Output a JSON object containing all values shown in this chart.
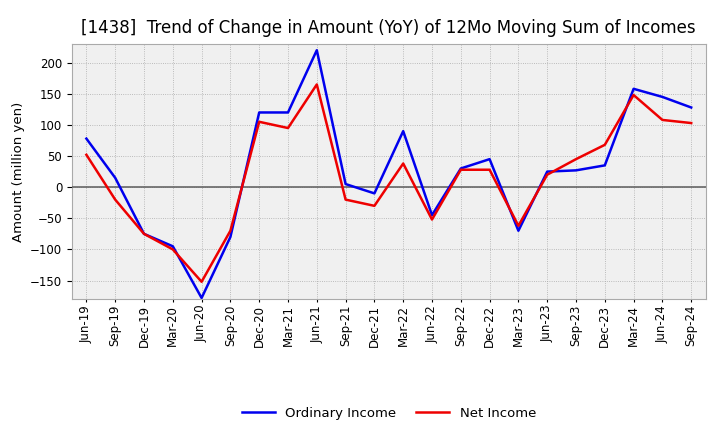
{
  "title": "[1438]  Trend of Change in Amount (YoY) of 12Mo Moving Sum of Incomes",
  "ylabel": "Amount (million yen)",
  "background_color": "#ffffff",
  "plot_bg_color": "#f0f0f0",
  "grid_color": "#aaaaaa",
  "zero_line_color": "#666666",
  "title_fontsize": 12,
  "label_fontsize": 9.5,
  "tick_fontsize": 8.5,
  "ordinary_income_color": "#0000ee",
  "net_income_color": "#ee0000",
  "labels": [
    "Jun-19",
    "Sep-19",
    "Dec-19",
    "Mar-20",
    "Jun-20",
    "Sep-20",
    "Dec-20",
    "Mar-21",
    "Jun-21",
    "Sep-21",
    "Dec-21",
    "Mar-22",
    "Jun-22",
    "Sep-22",
    "Dec-22",
    "Mar-23",
    "Jun-23",
    "Sep-23",
    "Dec-23",
    "Mar-24",
    "Jun-24",
    "Sep-24"
  ],
  "ordinary_income": [
    78,
    15,
    -75,
    -95,
    -178,
    -80,
    120,
    120,
    220,
    5,
    -10,
    90,
    -45,
    30,
    45,
    -70,
    25,
    27,
    35,
    158,
    145,
    128
  ],
  "net_income": [
    52,
    -20,
    -75,
    -100,
    -152,
    -70,
    105,
    95,
    165,
    -20,
    -30,
    38,
    -52,
    28,
    28,
    -62,
    20,
    45,
    68,
    148,
    108,
    103
  ],
  "ylim": [
    -180,
    230
  ],
  "ytick_step": 50,
  "line_width": 1.8
}
